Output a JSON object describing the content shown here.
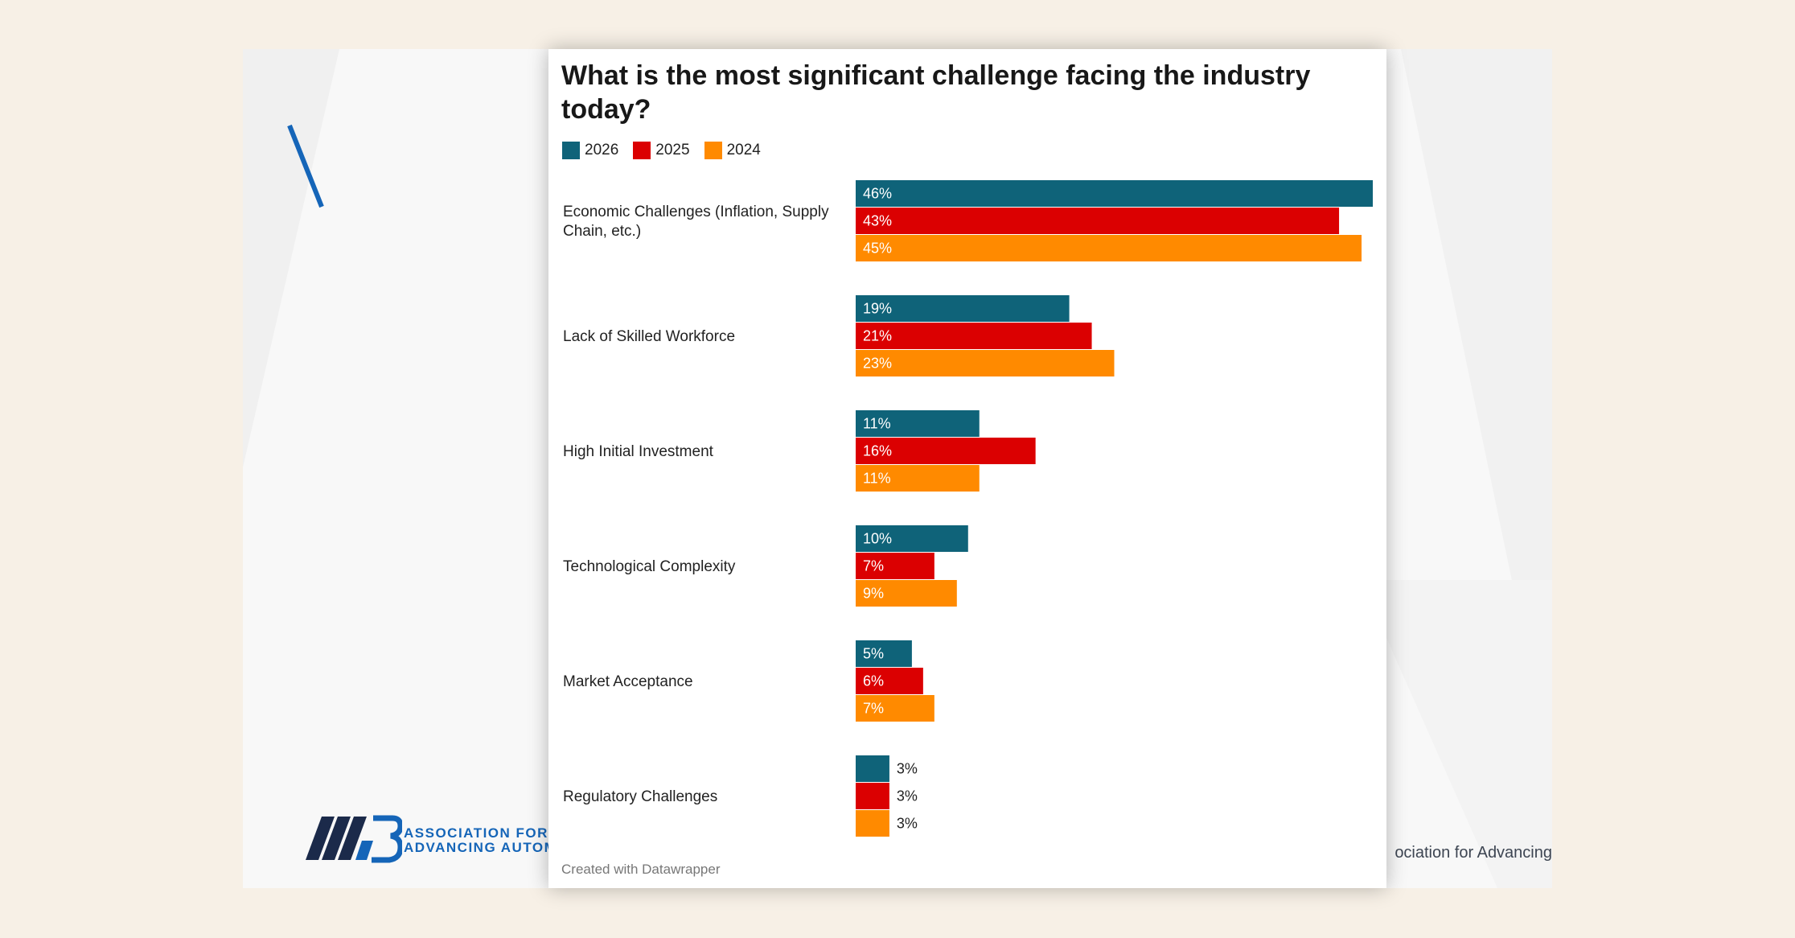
{
  "slide": {
    "org_name_line1": "ASSOCIATION FOR",
    "org_name_line2": "ADVANCING AUTOMA",
    "footer_text": "ociation for Advancing",
    "brand_color": "#1565b8",
    "logo_icon": "a3-logo-icon"
  },
  "chart_data": {
    "type": "bar",
    "orientation": "horizontal",
    "title": "What is the most significant challenge facing the industry today?",
    "credit": "Created with Datawrapper",
    "categories": [
      [
        "Economic Challenges (Inflation, Supply",
        "Chain, etc.)"
      ],
      [
        "Lack of Skilled Workforce"
      ],
      [
        "High Initial Investment"
      ],
      [
        "Technological Complexity"
      ],
      [
        "Market Acceptance"
      ],
      [
        "Regulatory Challenges"
      ]
    ],
    "series": [
      {
        "name": "2026",
        "color": "#0f6379",
        "values": [
          46,
          19,
          11,
          10,
          5,
          3
        ]
      },
      {
        "name": "2025",
        "color": "#db0001",
        "values": [
          43,
          21,
          16,
          7,
          6,
          3
        ]
      },
      {
        "name": "2024",
        "color": "#ff8a00",
        "values": [
          45,
          23,
          11,
          9,
          7,
          3
        ]
      }
    ],
    "value_suffix": "%",
    "xlim": [
      0,
      46
    ],
    "legend_position": "top-left",
    "grid": false
  }
}
